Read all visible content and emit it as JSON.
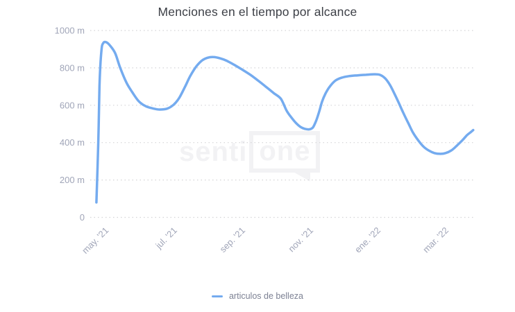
{
  "chart": {
    "title": "Menciones en el tiempo por alcance"
  },
  "watermark": {
    "prefix": "senti",
    "boxed": "one"
  },
  "legend": {
    "label": "articulos de belleza"
  },
  "colors": {
    "series_line": "#74abef",
    "axis_label": "#a0a5b8",
    "gridline": "#d3d3d6",
    "title_text": "#3c3f46",
    "legend_text": "#7d8294",
    "watermark": "#f2f2f4"
  },
  "chart_data": {
    "type": "line",
    "title": "Menciones en el tiempo por alcance",
    "xlabel": "",
    "ylabel": "",
    "ylim": [
      0,
      1000
    ],
    "grid": "horizontal-dotted",
    "legend_position": "bottom-center",
    "x_axis_unit": "fraction of plot width (date axis may '21 - mar '22)",
    "y_axis_unit": "mentions reach, m = millions",
    "y_ticks": [
      {
        "value": 0,
        "label": "0"
      },
      {
        "value": 200,
        "label": "200 m"
      },
      {
        "value": 400,
        "label": "400 m"
      },
      {
        "value": 600,
        "label": "600 m"
      },
      {
        "value": 800,
        "label": "800 m"
      },
      {
        "value": 1000,
        "label": "1000 m"
      }
    ],
    "x_ticks": [
      {
        "pos": 0.042,
        "label": "may. '21"
      },
      {
        "pos": 0.22,
        "label": "jul. '21"
      },
      {
        "pos": 0.397,
        "label": "sep. '21"
      },
      {
        "pos": 0.574,
        "label": "nov. '21"
      },
      {
        "pos": 0.749,
        "label": "ene. '22"
      },
      {
        "pos": 0.926,
        "label": "mar. '22"
      }
    ],
    "series": [
      {
        "name": "articulos de belleza",
        "color": "#74abef",
        "points": [
          [
            0.016,
            80
          ],
          [
            0.021,
            400
          ],
          [
            0.024,
            700
          ],
          [
            0.029,
            890
          ],
          [
            0.034,
            933
          ],
          [
            0.042,
            937
          ],
          [
            0.052,
            918
          ],
          [
            0.065,
            878
          ],
          [
            0.078,
            800
          ],
          [
            0.094,
            722
          ],
          [
            0.11,
            668
          ],
          [
            0.126,
            622
          ],
          [
            0.144,
            595
          ],
          [
            0.163,
            583
          ],
          [
            0.181,
            577
          ],
          [
            0.2,
            582
          ],
          [
            0.217,
            603
          ],
          [
            0.231,
            638
          ],
          [
            0.246,
            697
          ],
          [
            0.26,
            756
          ],
          [
            0.276,
            808
          ],
          [
            0.291,
            840
          ],
          [
            0.305,
            854
          ],
          [
            0.32,
            858
          ],
          [
            0.338,
            851
          ],
          [
            0.356,
            837
          ],
          [
            0.374,
            817
          ],
          [
            0.395,
            791
          ],
          [
            0.417,
            762
          ],
          [
            0.439,
            728
          ],
          [
            0.46,
            694
          ],
          [
            0.478,
            664
          ],
          [
            0.496,
            634
          ],
          [
            0.511,
            570
          ],
          [
            0.524,
            532
          ],
          [
            0.536,
            503
          ],
          [
            0.547,
            484
          ],
          [
            0.558,
            474
          ],
          [
            0.569,
            471
          ],
          [
            0.579,
            481
          ],
          [
            0.588,
            520
          ],
          [
            0.596,
            570
          ],
          [
            0.603,
            620
          ],
          [
            0.612,
            663
          ],
          [
            0.623,
            700
          ],
          [
            0.637,
            731
          ],
          [
            0.653,
            747
          ],
          [
            0.673,
            756
          ],
          [
            0.695,
            760
          ],
          [
            0.717,
            763
          ],
          [
            0.738,
            766
          ],
          [
            0.753,
            763
          ],
          [
            0.767,
            744
          ],
          [
            0.78,
            707
          ],
          [
            0.792,
            658
          ],
          [
            0.803,
            610
          ],
          [
            0.814,
            560
          ],
          [
            0.827,
            505
          ],
          [
            0.839,
            455
          ],
          [
            0.852,
            415
          ],
          [
            0.866,
            380
          ],
          [
            0.881,
            357
          ],
          [
            0.895,
            344
          ],
          [
            0.91,
            340
          ],
          [
            0.924,
            344
          ],
          [
            0.939,
            358
          ],
          [
            0.953,
            383
          ],
          [
            0.968,
            413
          ],
          [
            0.98,
            440
          ],
          [
            0.989,
            455
          ],
          [
            0.996,
            467
          ]
        ]
      }
    ]
  }
}
